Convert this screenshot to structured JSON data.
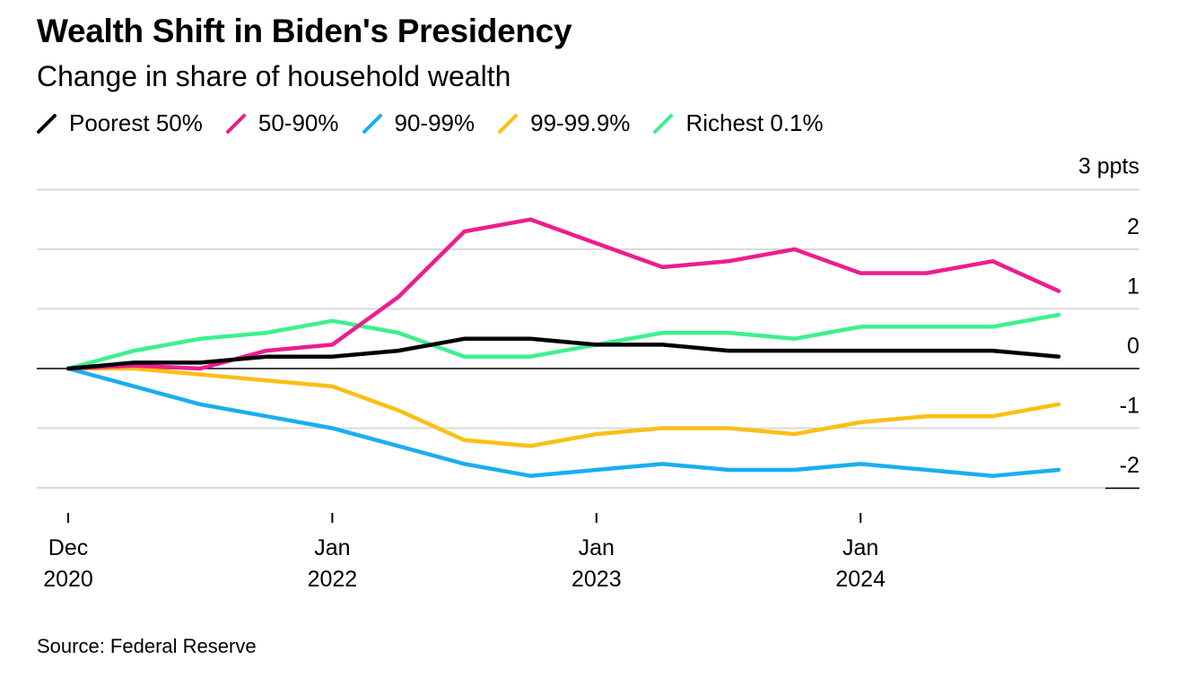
{
  "header": {
    "title": "Wealth Shift in Biden's Presidency",
    "subtitle": "Change in share of household wealth"
  },
  "footer": {
    "source": "Source: Federal Reserve"
  },
  "chart_data": {
    "type": "line",
    "title": "Wealth Shift in Biden's Presidency",
    "subtitle": "Change in share of household wealth",
    "unit_label": "3 ppts",
    "ylim": [
      -2,
      3
    ],
    "yticks": [
      2,
      1,
      0,
      -1,
      -2
    ],
    "xticks": [
      {
        "quarter": 0,
        "line1": "Dec",
        "line2": "2020"
      },
      {
        "quarter": 4,
        "line1": "Jan",
        "line2": "2022"
      },
      {
        "quarter": 8,
        "line1": "Jan",
        "line2": "2023"
      },
      {
        "quarter": 12,
        "line1": "Jan",
        "line2": "2024"
      }
    ],
    "grid": true,
    "legend_position": "top",
    "x_dates": [
      "2020 Q4",
      "2021 Q1",
      "2021 Q2",
      "2021 Q3",
      "2021 Q4",
      "2022 Q1",
      "2022 Q2",
      "2022 Q3",
      "2022 Q4",
      "2023 Q1",
      "2023 Q2",
      "2023 Q3",
      "2023 Q4",
      "2024 Q1",
      "2024 Q2",
      "2024 Q3"
    ],
    "series": [
      {
        "name": "Poorest 50%",
        "color": "#000000",
        "values": [
          0,
          0.1,
          0.1,
          0.2,
          0.2,
          0.3,
          0.5,
          0.5,
          0.4,
          0.4,
          0.3,
          0.3,
          0.3,
          0.3,
          0.3,
          0.2
        ]
      },
      {
        "name": "50-90%",
        "color": "#ee1c8f",
        "values": [
          0,
          0.05,
          0.0,
          0.3,
          0.4,
          1.2,
          2.3,
          2.5,
          2.1,
          1.7,
          1.8,
          2.0,
          1.6,
          1.6,
          1.8,
          1.3
        ]
      },
      {
        "name": "90-99%",
        "color": "#1aaef0",
        "values": [
          0,
          -0.3,
          -0.6,
          -0.8,
          -1.0,
          -1.3,
          -1.6,
          -1.8,
          -1.7,
          -1.6,
          -1.7,
          -1.7,
          -1.6,
          -1.7,
          -1.8,
          -1.7
        ]
      },
      {
        "name": "99-99.9%",
        "color": "#fbbf14",
        "values": [
          0,
          0.0,
          -0.1,
          -0.2,
          -0.3,
          -0.7,
          -1.2,
          -1.3,
          -1.1,
          -1.0,
          -1.0,
          -1.1,
          -0.9,
          -0.8,
          -0.8,
          -0.6
        ]
      },
      {
        "name": "Richest 0.1%",
        "color": "#3df08f",
        "values": [
          0,
          0.3,
          0.5,
          0.6,
          0.8,
          0.6,
          0.2,
          0.2,
          0.4,
          0.6,
          0.6,
          0.5,
          0.7,
          0.7,
          0.7,
          0.9
        ]
      }
    ]
  }
}
